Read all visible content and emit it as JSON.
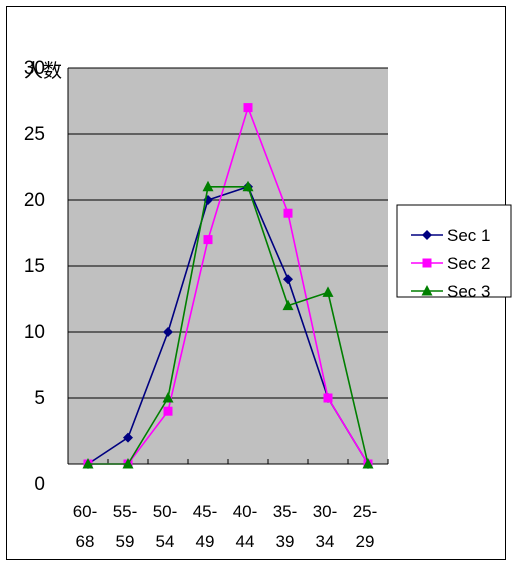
{
  "chart_data": {
    "type": "line",
    "ylabel": "人数",
    "ylim": [
      0,
      30
    ],
    "y_ticks": [
      "0",
      "5",
      "10",
      "15",
      "20",
      "25",
      "30"
    ],
    "categories": [
      {
        "top": "60-",
        "bottom": "68"
      },
      {
        "top": "55-",
        "bottom": "59"
      },
      {
        "top": "50-",
        "bottom": "54"
      },
      {
        "top": "45-",
        "bottom": "49"
      },
      {
        "top": "40-",
        "bottom": "44"
      },
      {
        "top": "35-",
        "bottom": "39"
      },
      {
        "top": "30-",
        "bottom": "34"
      },
      {
        "top": "25-",
        "bottom": "29"
      }
    ],
    "grid": true,
    "plot_background": "#c0c0c0",
    "legend_position": "right",
    "series": [
      {
        "name": "Sec 1",
        "color": "#000080",
        "marker": "diamond",
        "values": [
          0,
          2,
          10,
          20,
          21,
          14,
          5,
          0
        ]
      },
      {
        "name": "Sec 2",
        "color": "#ff00ff",
        "marker": "square",
        "values": [
          0,
          0,
          4,
          17,
          27,
          19,
          5,
          0
        ]
      },
      {
        "name": "Sec 3",
        "color": "#007f00",
        "marker": "triangle",
        "values": [
          0,
          0,
          5,
          21,
          21,
          12,
          13,
          0
        ]
      }
    ]
  }
}
